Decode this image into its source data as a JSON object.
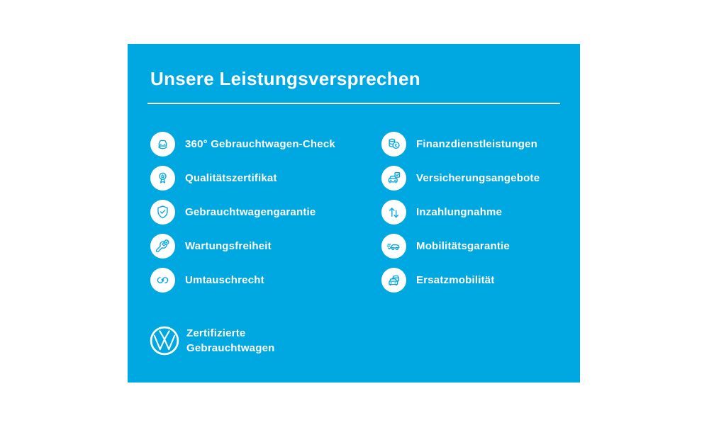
{
  "colors": {
    "panel_blue": "#00A8E1",
    "text": "#FFFFFF"
  },
  "panel": {
    "title": "Unsere Leistungsversprechen"
  },
  "promises": {
    "left": [
      {
        "icon": "car-360",
        "label": "360° Gebrauchtwagen-Check"
      },
      {
        "icon": "quality-certificate",
        "label": "Qualitätszertifikat"
      },
      {
        "icon": "shield-check",
        "label": "Gebrauchtwagengarantie"
      },
      {
        "icon": "wrench-check",
        "label": "Wartungsfreiheit"
      },
      {
        "icon": "exchange-arrows",
        "label": "Umtauschrecht"
      }
    ],
    "right": [
      {
        "icon": "coins-euro",
        "label": "Finanzdienstleistungen"
      },
      {
        "icon": "car-checklist",
        "label": "Versicherungsangebote"
      },
      {
        "icon": "arrows-up-down",
        "label": "Inzahlungnahme"
      },
      {
        "icon": "car-motion-check",
        "label": "Mobilitätsgarantie"
      },
      {
        "icon": "two-cars",
        "label": "Ersatzmobilität"
      }
    ]
  },
  "footer": {
    "logo": "vw-logo",
    "line1": "Zertifizierte",
    "line2": "Gebrauchtwagen"
  }
}
